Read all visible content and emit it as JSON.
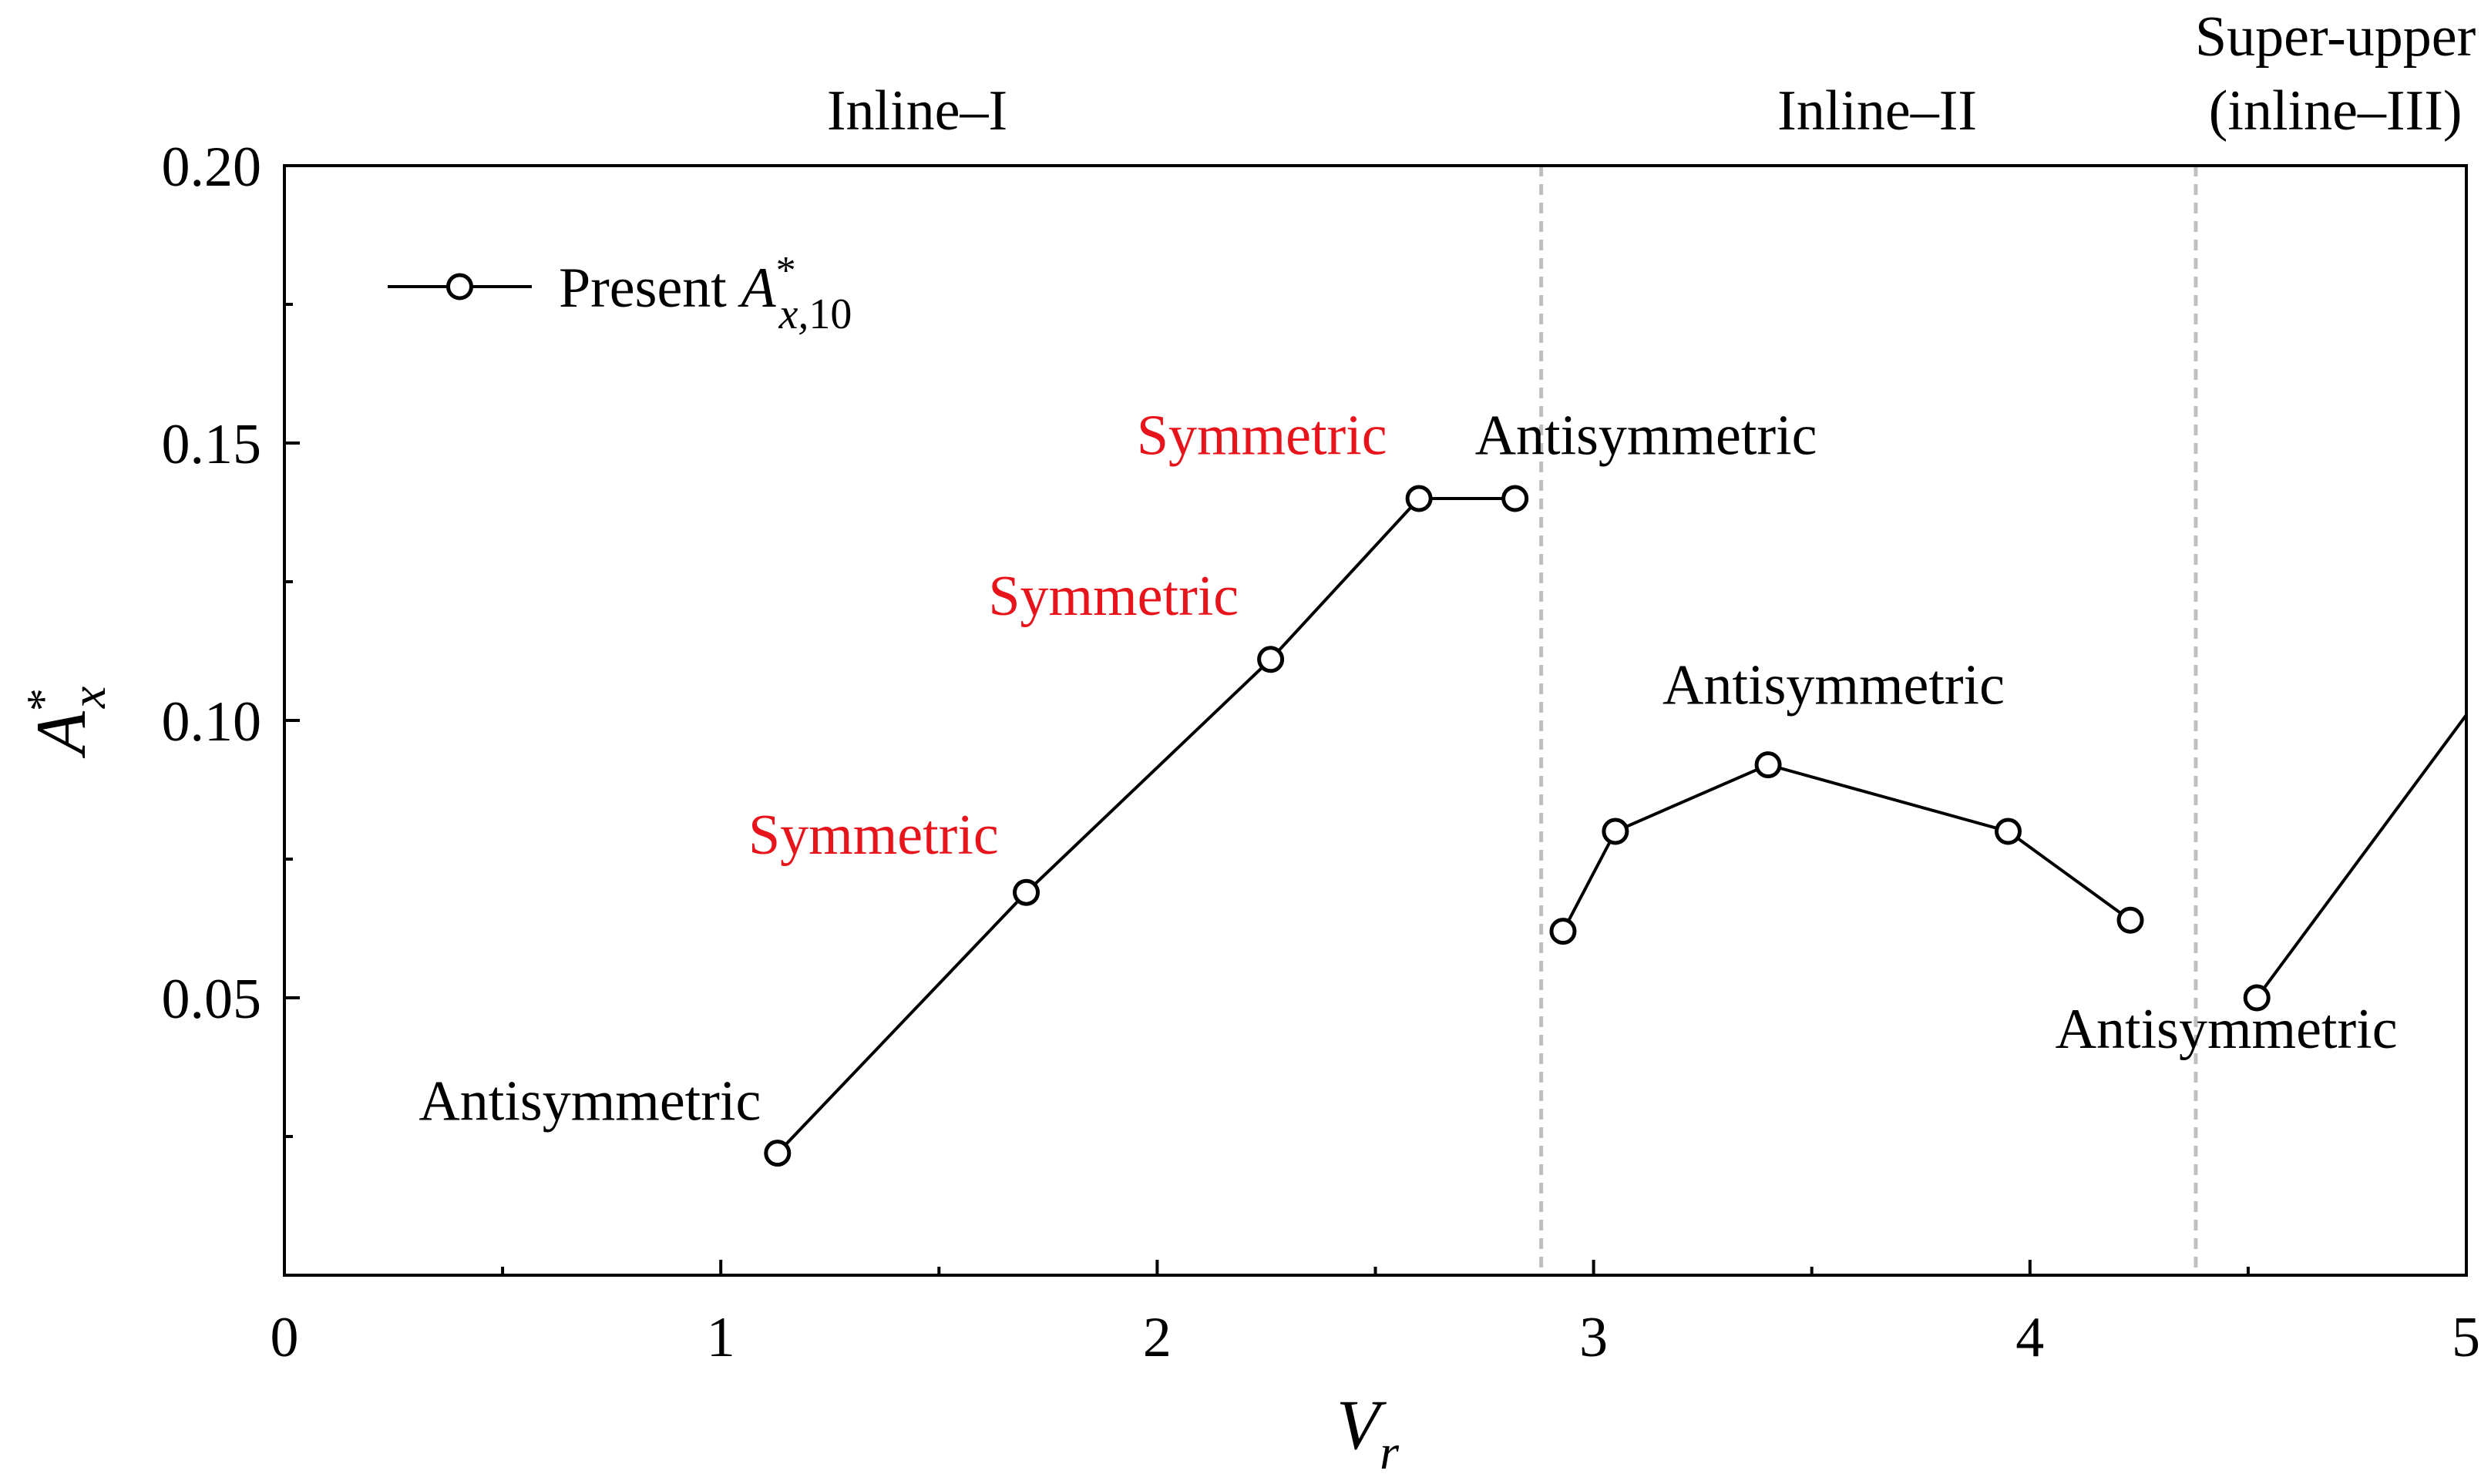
{
  "chart_data": {
    "type": "line",
    "xlabel": "V_r",
    "ylabel": "A*_x",
    "xlim": [
      0,
      5
    ],
    "ylim": [
      0,
      0.2
    ],
    "x_ticks": [
      "0",
      "1",
      "2",
      "3",
      "4",
      "5"
    ],
    "y_ticks": [
      "0.05",
      "0.10",
      "0.15",
      "0.20"
    ],
    "legend": {
      "label": "Present A*_x,10",
      "placement": "top-left"
    },
    "series": [
      {
        "name": "Present A*_x,10",
        "segments": [
          [
            [
              1.13,
              0.022
            ],
            [
              1.7,
              0.069
            ],
            [
              2.26,
              0.111
            ],
            [
              2.6,
              0.14
            ],
            [
              2.82,
              0.14
            ]
          ],
          [
            [
              2.93,
              0.062
            ],
            [
              3.05,
              0.08
            ],
            [
              3.4,
              0.092
            ],
            [
              3.95,
              0.08
            ],
            [
              4.23,
              0.064
            ]
          ],
          [
            [
              4.52,
              0.05
            ],
            [
              5.0,
              0.101
            ]
          ]
        ]
      }
    ],
    "region_boundaries": [
      2.88,
      4.38
    ],
    "regions": [
      {
        "lines": [
          "Inline–I"
        ],
        "x": 1.45
      },
      {
        "lines": [
          "Inline–II"
        ],
        "x": 3.65
      },
      {
        "lines": [
          "Super-upper",
          "(inline–III)"
        ],
        "x": 4.7
      }
    ],
    "annotations": [
      {
        "text": "Antisymmetric",
        "x": 0.7,
        "y": 0.028,
        "color": "#000000"
      },
      {
        "text": "Symmetric",
        "x": 1.35,
        "y": 0.076,
        "color": "#e8141c"
      },
      {
        "text": "Symmetric",
        "x": 1.9,
        "y": 0.119,
        "color": "#e8141c"
      },
      {
        "text": "Symmetric",
        "x": 2.24,
        "y": 0.148,
        "color": "#e8141c"
      },
      {
        "text": "Antisymmetric",
        "x": 3.12,
        "y": 0.148,
        "color": "#000000"
      },
      {
        "text": "Antisymmetric",
        "x": 3.55,
        "y": 0.103,
        "color": "#000000"
      },
      {
        "text": "Antisymmetric",
        "x": 4.45,
        "y": 0.041,
        "color": "#000000"
      }
    ],
    "colors": {
      "line": "#000000",
      "symmetric": "#e8141c",
      "boundary": "#bfbfbf"
    }
  }
}
